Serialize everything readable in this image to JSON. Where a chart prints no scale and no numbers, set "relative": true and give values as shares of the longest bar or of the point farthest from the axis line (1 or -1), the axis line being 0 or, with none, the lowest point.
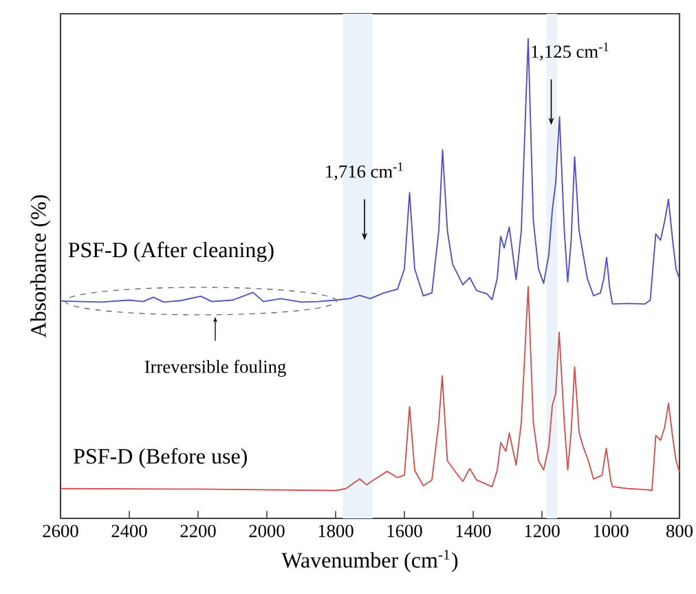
{
  "chart_data": {
    "type": "line",
    "relative": true,
    "xlabel": "Wavenumber (cm$^{-1}$)",
    "ylabel": "Absorbance (%)",
    "xlim": [
      2600,
      800
    ],
    "xticks": [
      2600,
      2400,
      2200,
      2000,
      1800,
      1600,
      1400,
      1200,
      1000,
      800
    ],
    "tick_labels": "x",
    "series": [
      {
        "name": "PSF-D (After cleaning)",
        "color": "#5050c0",
        "x": [
          2600,
          2480,
          2400,
          2360,
          2330,
          2300,
          2250,
          2192,
          2160,
          2100,
          2040,
          2010,
          1960,
          1900,
          1850,
          1800,
          1760,
          1730,
          1700,
          1660,
          1620,
          1600,
          1585,
          1570,
          1545,
          1520,
          1500,
          1489,
          1475,
          1460,
          1430,
          1410,
          1390,
          1360,
          1345,
          1330,
          1320,
          1310,
          1295,
          1275,
          1260,
          1240,
          1225,
          1210,
          1195,
          1180,
          1170,
          1160,
          1149,
          1135,
          1125,
          1115,
          1105,
          1092,
          1080,
          1068,
          1050,
          1030,
          1020,
          1012,
          1003,
          995,
          950,
          900,
          885,
          869,
          855,
          843,
          832,
          820,
          810,
          800
        ],
        "values": [
          0.453,
          0.451,
          0.455,
          0.452,
          0.461,
          0.451,
          0.454,
          0.463,
          0.452,
          0.455,
          0.471,
          0.452,
          0.458,
          0.451,
          0.452,
          0.455,
          0.458,
          0.465,
          0.458,
          0.47,
          0.478,
          0.52,
          0.679,
          0.52,
          0.464,
          0.47,
          0.6,
          0.768,
          0.6,
          0.53,
          0.487,
          0.502,
          0.475,
          0.468,
          0.456,
          0.5,
          0.588,
          0.564,
          0.607,
          0.498,
          0.6,
          1.0,
          0.62,
          0.52,
          0.49,
          0.55,
          0.642,
          0.7,
          0.837,
          0.6,
          0.493,
          0.58,
          0.754,
          0.6,
          0.55,
          0.5,
          0.464,
          0.47,
          0.5,
          0.544,
          0.48,
          0.447,
          0.448,
          0.447,
          0.455,
          0.593,
          0.58,
          0.62,
          0.665,
          0.58,
          0.52,
          0.499
        ]
      },
      {
        "name": "PSF-D (Before use)",
        "color": "#d05050",
        "x": [
          2600,
          2200,
          1800,
          1770,
          1745,
          1730,
          1710,
          1690,
          1650,
          1620,
          1600,
          1585,
          1570,
          1545,
          1520,
          1500,
          1490,
          1475,
          1455,
          1430,
          1410,
          1390,
          1345,
          1330,
          1320,
          1305,
          1295,
          1275,
          1260,
          1240,
          1225,
          1210,
          1195,
          1180,
          1170,
          1160,
          1150,
          1135,
          1125,
          1115,
          1105,
          1092,
          1080,
          1065,
          1050,
          1025,
          1013,
          1000,
          995,
          950,
          900,
          880,
          869,
          855,
          843,
          832,
          820,
          810,
          800
        ],
        "values": [
          0.062,
          0.061,
          0.058,
          0.062,
          0.075,
          0.082,
          0.07,
          0.08,
          0.098,
          0.085,
          0.09,
          0.233,
          0.1,
          0.068,
          0.08,
          0.2,
          0.297,
          0.12,
          0.1,
          0.077,
          0.104,
          0.08,
          0.066,
          0.1,
          0.158,
          0.14,
          0.178,
          0.111,
          0.2,
          0.483,
          0.2,
          0.12,
          0.101,
          0.15,
          0.235,
          0.26,
          0.388,
          0.2,
          0.101,
          0.18,
          0.316,
          0.18,
          0.149,
          0.12,
          0.082,
          0.09,
          0.146,
          0.08,
          0.066,
          0.062,
          0.06,
          0.058,
          0.173,
          0.163,
          0.19,
          0.24,
          0.17,
          0.12,
          0.097
        ]
      }
    ],
    "bands": [
      {
        "axis": "x",
        "from": 1779,
        "to": 1693,
        "color": "#eaf2fa"
      },
      {
        "axis": "x",
        "from": 1187,
        "to": 1156,
        "color": "#eaf2fa"
      }
    ],
    "annotations": [
      "1,716 cm$^{-1}$",
      "1,125 cm$^{-1}$",
      "Irreversible fouling"
    ]
  }
}
